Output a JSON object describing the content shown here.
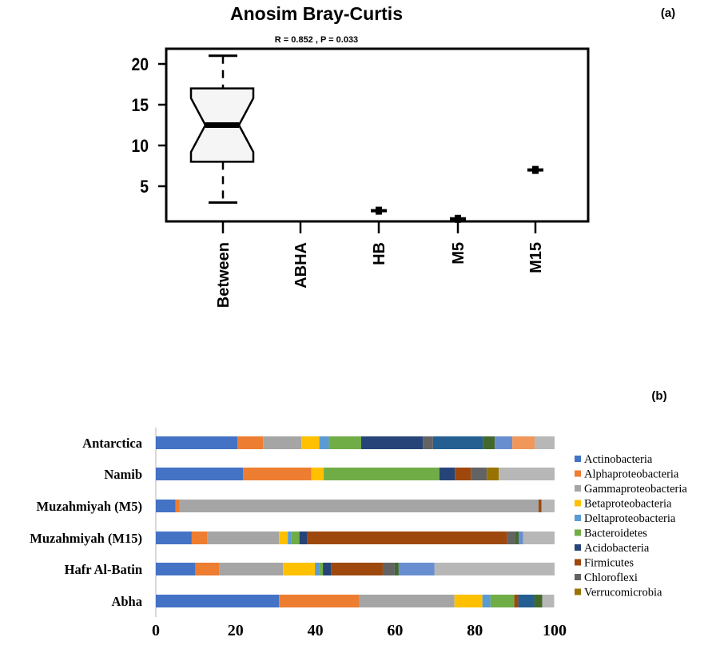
{
  "chart_data": [
    {
      "type": "boxplot",
      "panel_label": "(a)",
      "title": "Anosim Bray-Curtis",
      "subtitle": "R =  0.852 ,  P =  0.033",
      "ylim": [
        0,
        22
      ],
      "yticks": [
        5,
        10,
        15,
        20
      ],
      "categories": [
        "Between",
        "ABHA",
        "HB",
        "M5",
        "M15"
      ],
      "boxes": [
        {
          "category": "Between",
          "min": 3,
          "q1": 8,
          "median": 12.5,
          "q3": 17,
          "max": 21,
          "notch_low": 9.2,
          "notch_high": 15.8
        },
        {
          "category": "ABHA",
          "value": null
        },
        {
          "category": "HB",
          "value": 2
        },
        {
          "category": "M5",
          "value": 1
        },
        {
          "category": "M15",
          "value": 7
        }
      ]
    },
    {
      "type": "bar",
      "orientation": "horizontal-stacked",
      "panel_label": "(b)",
      "xlim": [
        0,
        100
      ],
      "xticks": [
        0,
        20,
        40,
        60,
        80,
        100
      ],
      "colors": {
        "actino": "#4472c4",
        "alpha": "#ed7d31",
        "gamma": "#a5a5a5",
        "beta": "#ffc000",
        "delta": "#5b9bd5",
        "bact": "#70ad47",
        "acido": "#264478",
        "firm": "#9e480e",
        "chloro": "#636363",
        "verru": "#997300",
        "c11": "#255e91",
        "c12": "#43682b",
        "c13": "#698ed0",
        "c14": "#f1975a",
        "c15": "#b7b7b7"
      },
      "legend": [
        {
          "key": "actino",
          "label": "Actinobacteria"
        },
        {
          "key": "alpha",
          "label": "Alphaproteobacteria"
        },
        {
          "key": "gamma",
          "label": "Gammaproteobacteria"
        },
        {
          "key": "beta",
          "label": "Betaproteobacteria"
        },
        {
          "key": "delta",
          "label": "Deltaproteobacteria"
        },
        {
          "key": "bact",
          "label": "Bacteroidetes"
        },
        {
          "key": "acido",
          "label": "Acidobacteria"
        },
        {
          "key": "firm",
          "label": "Firmicutes"
        },
        {
          "key": "chloro",
          "label": "Chloroflexi"
        },
        {
          "key": "verru",
          "label": "Verrucomicrobia"
        }
      ],
      "bars": [
        {
          "label": "Antarctica",
          "segments": [
            [
              20.5,
              "actino"
            ],
            [
              6.4,
              "alpha"
            ],
            [
              9.6,
              "gamma"
            ],
            [
              4.5,
              "beta"
            ],
            [
              2.4,
              "delta"
            ],
            [
              8.1,
              "bact"
            ],
            [
              15.5,
              "acido"
            ],
            [
              2.5,
              "chloro"
            ],
            [
              12.5,
              "c11"
            ],
            [
              3,
              "c12"
            ],
            [
              4.4,
              "c13"
            ],
            [
              5.6,
              "c14"
            ],
            [
              5,
              "c15"
            ]
          ]
        },
        {
          "label": "Namib",
          "segments": [
            [
              21.9,
              "actino"
            ],
            [
              17.1,
              "alpha"
            ],
            [
              3.1,
              "beta"
            ],
            [
              29,
              "bact"
            ],
            [
              3.9,
              "acido"
            ],
            [
              4,
              "firm"
            ],
            [
              4,
              "chloro"
            ],
            [
              3,
              "verru"
            ],
            [
              14,
              "c15"
            ]
          ]
        },
        {
          "label": "Muzahmiyah (M5)",
          "segments": [
            [
              4.9,
              "actino"
            ],
            [
              1,
              "alpha"
            ],
            [
              90.1,
              "gamma"
            ],
            [
              0.7,
              "firm"
            ],
            [
              3.3,
              "c15"
            ]
          ]
        },
        {
          "label": "Muzahmiyah (M15)",
          "segments": [
            [
              9,
              "actino"
            ],
            [
              3.9,
              "alpha"
            ],
            [
              18,
              "gamma"
            ],
            [
              2.2,
              "beta"
            ],
            [
              0.9,
              "delta"
            ],
            [
              2,
              "bact"
            ],
            [
              2,
              "acido"
            ],
            [
              50.1,
              "firm"
            ],
            [
              2,
              "chloro"
            ],
            [
              0.9,
              "c12"
            ],
            [
              1.1,
              "c13"
            ],
            [
              7.9,
              "c15"
            ]
          ]
        },
        {
          "label": "Hafr Al-Batin",
          "segments": [
            [
              9.9,
              "actino"
            ],
            [
              6,
              "alpha"
            ],
            [
              16,
              "gamma"
            ],
            [
              8,
              "beta"
            ],
            [
              1,
              "delta"
            ],
            [
              1,
              "bact"
            ],
            [
              2,
              "acido"
            ],
            [
              13,
              "firm"
            ],
            [
              3,
              "chloro"
            ],
            [
              1,
              "c12"
            ],
            [
              9,
              "c13"
            ],
            [
              30.1,
              "c15"
            ]
          ]
        },
        {
          "label": "Abha",
          "segments": [
            [
              30.9,
              "actino"
            ],
            [
              20,
              "alpha"
            ],
            [
              24,
              "gamma"
            ],
            [
              7,
              "beta"
            ],
            [
              2,
              "delta"
            ],
            [
              6,
              "bact"
            ],
            [
              1,
              "firm"
            ],
            [
              4,
              "c11"
            ],
            [
              2,
              "c12"
            ],
            [
              3,
              "c15"
            ]
          ]
        }
      ]
    }
  ]
}
